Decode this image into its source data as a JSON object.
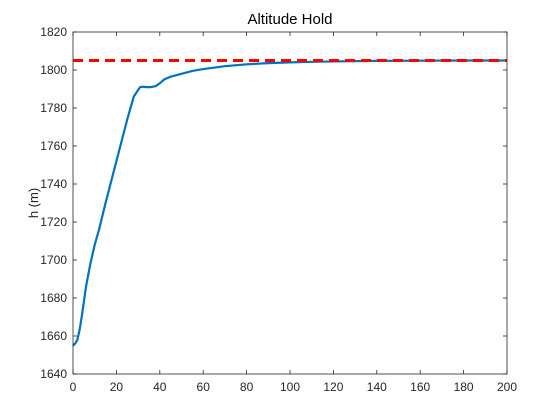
{
  "chart_data": {
    "type": "line",
    "title": "Altitude Hold",
    "xlabel": "",
    "ylabel": "h (m)",
    "xlim": [
      0,
      200
    ],
    "ylim": [
      1640,
      1820
    ],
    "xticks": [
      0,
      20,
      40,
      60,
      80,
      100,
      120,
      140,
      160,
      180,
      200
    ],
    "yticks": [
      1640,
      1660,
      1680,
      1700,
      1720,
      1740,
      1760,
      1780,
      1800,
      1820
    ],
    "grid": false,
    "series": [
      {
        "style": "solid",
        "color": "#0072BD",
        "x": [
          0,
          1,
          2,
          3,
          4,
          5,
          6,
          8,
          10,
          12,
          15,
          20,
          25,
          28,
          30,
          31,
          32,
          34,
          36,
          38,
          40,
          42,
          45,
          50,
          55,
          60,
          70,
          80,
          90,
          100,
          110,
          120,
          140,
          160,
          180,
          200
        ],
        "y": [
          1655,
          1656,
          1658,
          1663,
          1670,
          1678,
          1686,
          1698,
          1708,
          1716,
          1730,
          1752,
          1774,
          1786,
          1789.5,
          1791,
          1791.2,
          1791,
          1791,
          1791.5,
          1793,
          1795,
          1796.5,
          1798,
          1799.5,
          1800.5,
          1802,
          1803,
          1803.6,
          1804,
          1804.3,
          1804.5,
          1804.8,
          1804.9,
          1805,
          1805
        ]
      },
      {
        "style": "dashed",
        "color": "#FF0000",
        "x": [
          0,
          200
        ],
        "y": [
          1805,
          1805
        ]
      }
    ]
  }
}
